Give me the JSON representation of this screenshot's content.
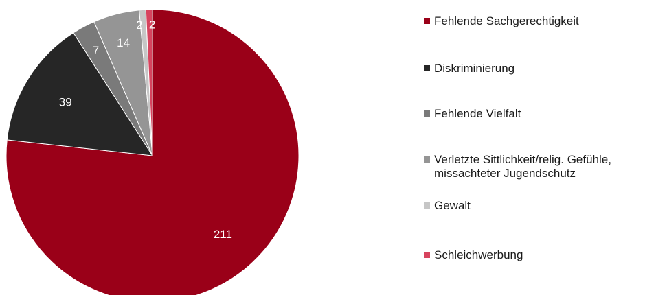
{
  "chart_data": {
    "type": "pie",
    "categories": [
      "Fehlende Sachgerechtigkeit",
      "Diskriminierung",
      "Fehlende Vielfalt",
      "Verletzte Sittlichkeit/relig. Gefühle,\nmissachteter Jugendschutz",
      "Gewalt",
      "Schleichwerbung"
    ],
    "values": [
      211,
      39,
      7,
      14,
      2,
      2
    ],
    "colors": [
      "#9a0018",
      "#262626",
      "#7a7a7a",
      "#959595",
      "#c6c6c6",
      "#d7435e"
    ],
    "data_labels": [
      "211",
      "39",
      "7",
      "14",
      "2",
      "2"
    ],
    "legend_position": "right",
    "start_angle": "12 o'clock",
    "direction": "clockwise"
  }
}
